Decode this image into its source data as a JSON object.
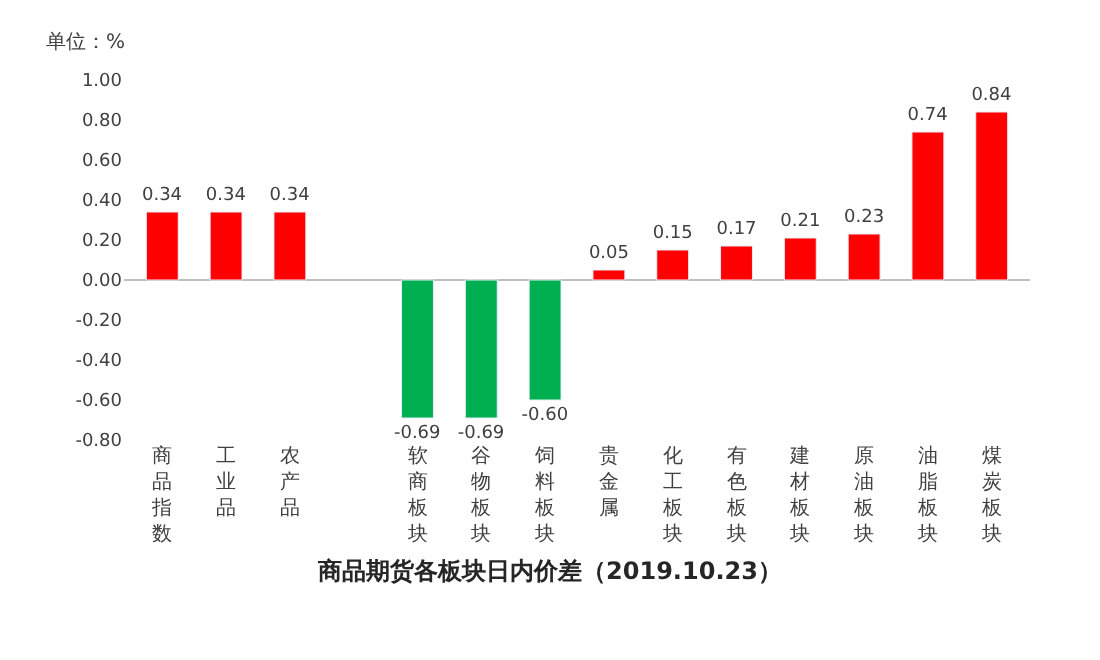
{
  "chart_data": {
    "type": "bar",
    "title": "商品期货各板块日内价差（2019.10.23）",
    "ylabel": "单位：%",
    "categories": [
      "商品指数",
      "工业品",
      "农产品",
      null,
      "软商板块",
      "谷物板块",
      "饲料板块",
      "贵金属",
      "化工板块",
      "有色板块",
      "建材板块",
      "原油板块",
      "油脂板块",
      "煤炭板块"
    ],
    "values": [
      0.34,
      0.34,
      0.34,
      null,
      -0.69,
      -0.69,
      -0.6,
      0.05,
      0.15,
      0.17,
      0.21,
      0.23,
      0.74,
      0.84
    ],
    "colors": [
      "#ff0000",
      "#ff0000",
      "#ff0000",
      "#ff0000",
      "#00b050",
      "#00b050",
      "#00b050",
      "#ff0000",
      "#ff0000",
      "#ff0000",
      "#ff0000",
      "#ff0000",
      "#ff0000",
      "#ff0000"
    ],
    "ylim": [
      -0.8,
      1.0
    ],
    "yticks": [
      {
        "value": -0.8,
        "label": "-0.80"
      },
      {
        "value": -0.6,
        "label": "-0.60"
      },
      {
        "value": -0.4,
        "label": "-0.40"
      },
      {
        "value": -0.2,
        "label": "-0.20"
      },
      {
        "value": 0,
        "label": "0.00"
      },
      {
        "value": 0.2,
        "label": "0.20"
      },
      {
        "value": 0.4,
        "label": "0.40"
      },
      {
        "value": 0.6,
        "label": "0.60"
      },
      {
        "value": 0.8,
        "label": "0.80"
      },
      {
        "value": 1.0,
        "label": "1.00"
      }
    ],
    "value_labels": [
      "0.34",
      "0.34",
      "0.34",
      null,
      "-0.69",
      "-0.69",
      "-0.60",
      "0.05",
      "0.15",
      "0.17",
      "0.21",
      "0.23",
      "0.74",
      "0.84"
    ]
  }
}
